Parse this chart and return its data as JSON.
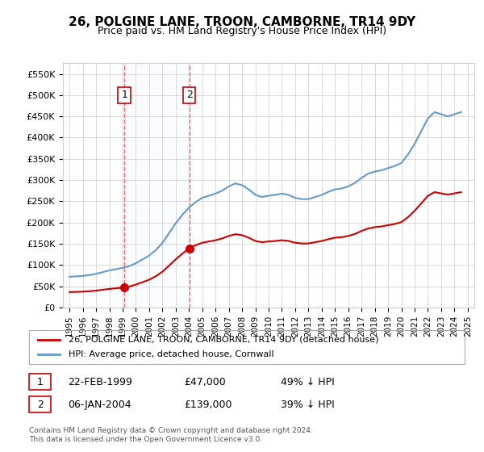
{
  "title": "26, POLGINE LANE, TROON, CAMBORNE, TR14 9DY",
  "subtitle": "Price paid vs. HM Land Registry's House Price Index (HPI)",
  "legend_line1": "26, POLGINE LANE, TROON, CAMBORNE, TR14 9DY (detached house)",
  "legend_line2": "HPI: Average price, detached house, Cornwall",
  "footnote": "Contains HM Land Registry data © Crown copyright and database right 2024.\nThis data is licensed under the Open Government Licence v3.0.",
  "sale1_date": "22-FEB-1999",
  "sale1_price": 47000,
  "sale1_label": "1",
  "sale1_hpi": "49% ↓ HPI",
  "sale2_date": "06-JAN-2004",
  "sale2_price": 139000,
  "sale2_label": "2",
  "sale2_hpi": "39% ↓ HPI",
  "ylim": [
    0,
    575000
  ],
  "yticks": [
    0,
    50000,
    100000,
    150000,
    200000,
    250000,
    300000,
    350000,
    400000,
    450000,
    500000,
    550000
  ],
  "red_color": "#cc0000",
  "blue_color": "#6699cc",
  "background_color": "#ffffff",
  "grid_color": "#cccccc",
  "sale_marker_color": "#cc0000",
  "vline_color": "#ff6666",
  "shade_color": "#ddeeff"
}
